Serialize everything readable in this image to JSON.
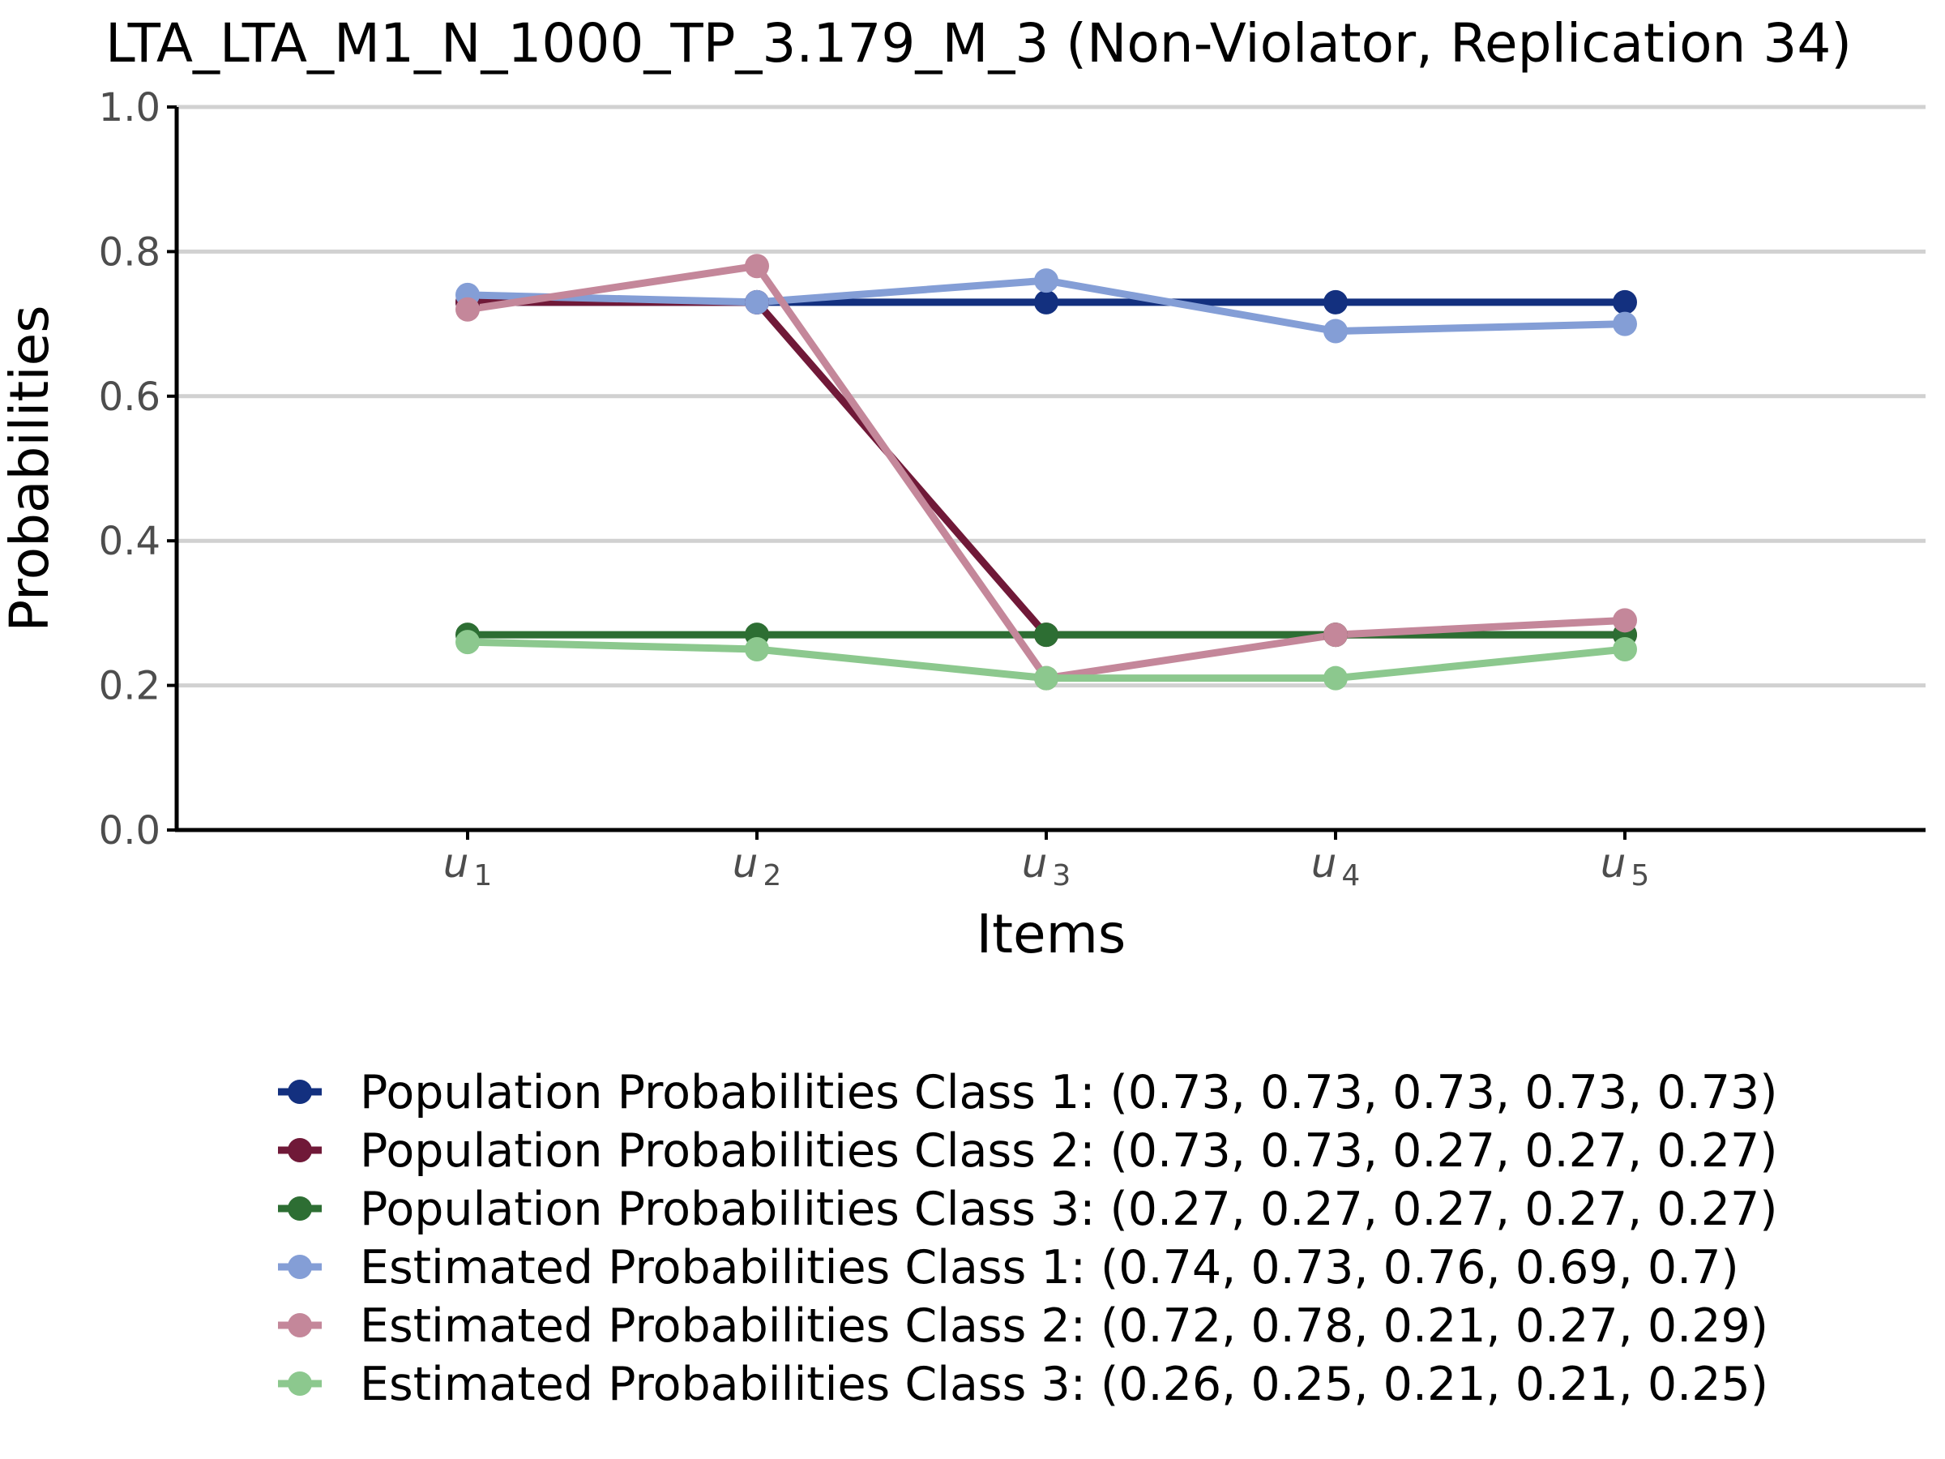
{
  "chart_data": {
    "type": "line",
    "title": "LTA_LTA_M1_N_1000_TP_3.179_M_3 (Non-Violator, Replication 34)",
    "xlabel": "Items",
    "ylabel": "Probabilities",
    "categories": [
      {
        "base": "u",
        "sub": "1"
      },
      {
        "base": "u",
        "sub": "2"
      },
      {
        "base": "u",
        "sub": "3"
      },
      {
        "base": "u",
        "sub": "4"
      },
      {
        "base": "u",
        "sub": "5"
      }
    ],
    "ylim": [
      0,
      1
    ],
    "yticks": [
      "0.0",
      "0.2",
      "0.4",
      "0.6",
      "0.8",
      "1.0"
    ],
    "grid": "horizontal",
    "legend_position": "bottom",
    "series": [
      {
        "name": "Population Probabilities Class 1: (0.73, 0.73, 0.73, 0.73, 0.73)",
        "color": "#13307f",
        "values": [
          0.73,
          0.73,
          0.73,
          0.73,
          0.73
        ]
      },
      {
        "name": "Population Probabilities Class 2: (0.73, 0.73, 0.27, 0.27, 0.27)",
        "color": "#701938",
        "values": [
          0.73,
          0.73,
          0.27,
          0.27,
          0.27
        ]
      },
      {
        "name": "Population Probabilities Class 3: (0.27, 0.27, 0.27, 0.27, 0.27)",
        "color": "#2d6e33",
        "values": [
          0.27,
          0.27,
          0.27,
          0.27,
          0.27
        ]
      },
      {
        "name": "Estimated Probabilities Class 1: (0.74, 0.73, 0.76, 0.69, 0.7)",
        "color": "#849ed6",
        "values": [
          0.74,
          0.73,
          0.76,
          0.69,
          0.7
        ]
      },
      {
        "name": "Estimated Probabilities Class 2: (0.72, 0.78, 0.21, 0.27, 0.29)",
        "color": "#c4879a",
        "values": [
          0.72,
          0.78,
          0.21,
          0.27,
          0.29
        ]
      },
      {
        "name": "Estimated Probabilities Class 3: (0.26, 0.25, 0.21, 0.21, 0.25)",
        "color": "#8cc88e",
        "values": [
          0.26,
          0.25,
          0.21,
          0.21,
          0.25
        ]
      }
    ]
  }
}
